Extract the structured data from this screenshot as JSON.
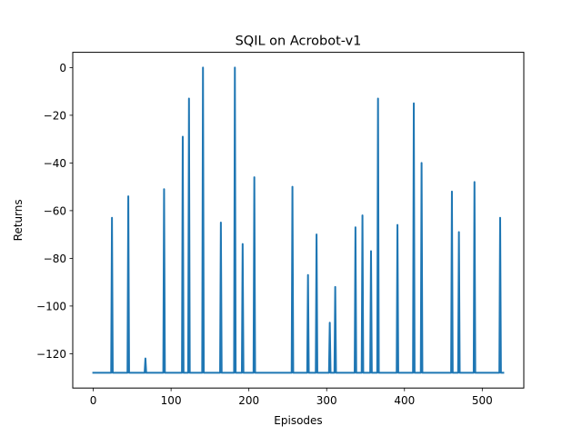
{
  "chart_data": {
    "type": "line",
    "title": "SQIL on Acrobot-v1",
    "xlabel": "Episodes",
    "ylabel": "Returns",
    "xlim": [
      -26.4,
      553.4
    ],
    "ylim": [
      -134.4,
      6.4
    ],
    "xticks": [
      0,
      100,
      200,
      300,
      400,
      500
    ],
    "xtick_labels": [
      "0",
      "100",
      "200",
      "300",
      "400",
      "500"
    ],
    "yticks": [
      0,
      -20,
      -40,
      -60,
      -80,
      -100,
      -120
    ],
    "ytick_labels": [
      "0",
      "−20",
      "−40",
      "−60",
      "−80",
      "−100",
      "−120"
    ],
    "grid": false,
    "series": [
      {
        "color": "#1f77b4",
        "x_start": 0,
        "x_end": 527,
        "baseline": -128,
        "spikes": [
          {
            "x": 24,
            "y": -63
          },
          {
            "x": 45,
            "y": -54
          },
          {
            "x": 67,
            "y": -122
          },
          {
            "x": 91,
            "y": -51
          },
          {
            "x": 115,
            "y": -29
          },
          {
            "x": 123,
            "y": -13
          },
          {
            "x": 141,
            "y": 0
          },
          {
            "x": 164,
            "y": -65
          },
          {
            "x": 182,
            "y": 0
          },
          {
            "x": 192,
            "y": -74
          },
          {
            "x": 207,
            "y": -46
          },
          {
            "x": 256,
            "y": -50
          },
          {
            "x": 276,
            "y": -87
          },
          {
            "x": 287,
            "y": -70
          },
          {
            "x": 304,
            "y": -107
          },
          {
            "x": 311,
            "y": -92
          },
          {
            "x": 337,
            "y": -67
          },
          {
            "x": 346,
            "y": -62
          },
          {
            "x": 357,
            "y": -77
          },
          {
            "x": 366,
            "y": -13
          },
          {
            "x": 391,
            "y": -66
          },
          {
            "x": 412,
            "y": -15
          },
          {
            "x": 422,
            "y": -40
          },
          {
            "x": 461,
            "y": -52
          },
          {
            "x": 470,
            "y": -69
          },
          {
            "x": 490,
            "y": -48
          },
          {
            "x": 523,
            "y": -63
          }
        ]
      }
    ]
  }
}
